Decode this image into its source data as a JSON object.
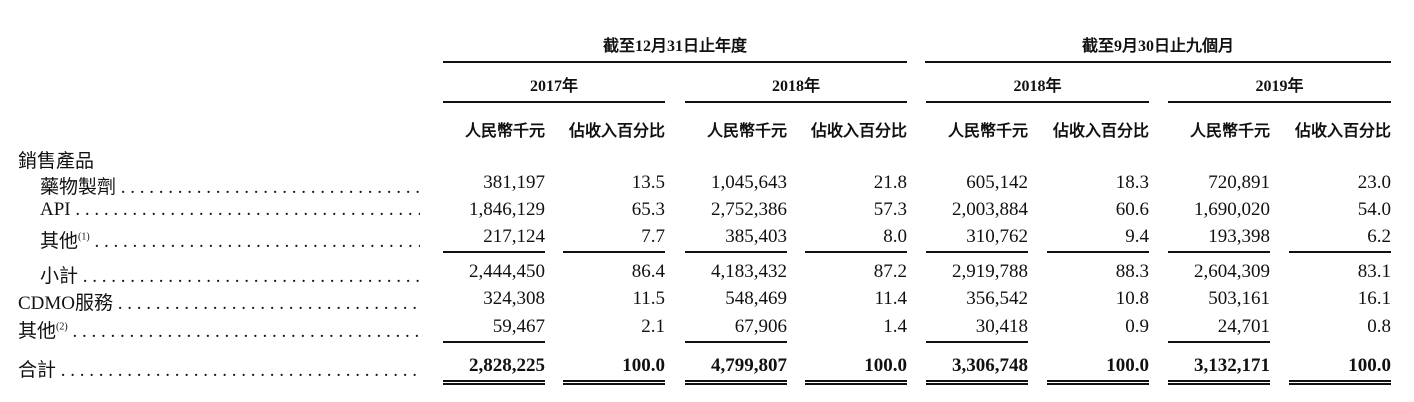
{
  "header": {
    "group_fy": "截至12月31日止年度",
    "group_9m": "截至9月30日止九個月",
    "years": [
      "2017年",
      "2018年",
      "2018年",
      "2019年"
    ],
    "amount_label": "人民幣千元",
    "pct_label": "佔收入百分比"
  },
  "section_label": "銷售產品",
  "rows": [
    {
      "label": "藥物製劑",
      "note": "",
      "indent": true,
      "values": [
        "381,197",
        "13.5",
        "1,045,643",
        "21.8",
        "605,142",
        "18.3",
        "720,891",
        "23.0"
      ]
    },
    {
      "label": "API",
      "note": "",
      "indent": true,
      "values": [
        "1,846,129",
        "65.3",
        "2,752,386",
        "57.3",
        "2,003,884",
        "60.6",
        "1,690,020",
        "54.0"
      ]
    },
    {
      "label": "其他",
      "note": "(1)",
      "indent": true,
      "values": [
        "217,124",
        "7.7",
        "385,403",
        "8.0",
        "310,762",
        "9.4",
        "193,398",
        "6.2"
      ]
    },
    {
      "label": "小計",
      "note": "",
      "indent": true,
      "values": [
        "2,444,450",
        "86.4",
        "4,183,432",
        "87.2",
        "2,919,788",
        "88.3",
        "2,604,309",
        "83.1"
      ]
    },
    {
      "label": "CDMO服務",
      "note": "",
      "indent": false,
      "values": [
        "324,308",
        "11.5",
        "548,469",
        "11.4",
        "356,542",
        "10.8",
        "503,161",
        "16.1"
      ]
    },
    {
      "label": "其他",
      "note": "(2)",
      "indent": false,
      "values": [
        "59,467",
        "2.1",
        "67,906",
        "1.4",
        "30,418",
        "0.9",
        "24,701",
        "0.8"
      ]
    },
    {
      "label": "合計",
      "note": "",
      "indent": false,
      "bold": true,
      "values": [
        "2,828,225",
        "100.0",
        "4,799,807",
        "100.0",
        "3,306,748",
        "100.0",
        "3,132,171",
        "100.0"
      ]
    }
  ]
}
